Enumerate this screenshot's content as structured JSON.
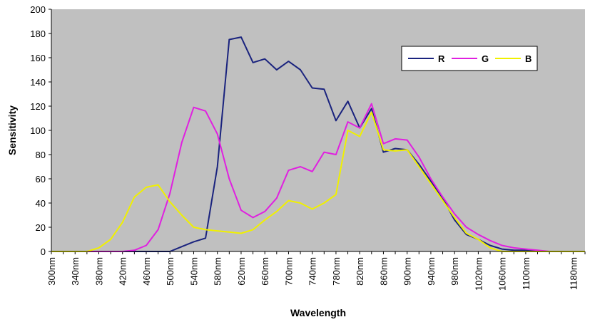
{
  "chart_data": {
    "type": "line",
    "title": "",
    "xlabel": "Wavelength",
    "ylabel": "Sensitivity",
    "ylim": [
      0,
      200
    ],
    "yticks": [
      0,
      20,
      40,
      60,
      80,
      100,
      120,
      140,
      160,
      180,
      200
    ],
    "xtick_labels": [
      "300nm",
      "340nm",
      "380nm",
      "420nm",
      "460nm",
      "500nm",
      "540nm",
      "580nm",
      "620nm",
      "660nm",
      "700nm",
      "740nm",
      "780nm",
      "820nm",
      "860nm",
      "900nm",
      "940nm",
      "980nm",
      "1020nm",
      "1060nm",
      "1100nm",
      "1180nm"
    ],
    "xtick_positions": [
      300,
      340,
      380,
      420,
      460,
      500,
      540,
      580,
      620,
      660,
      700,
      740,
      780,
      820,
      860,
      900,
      940,
      980,
      1020,
      1060,
      1100,
      1180
    ],
    "x": [
      300,
      320,
      340,
      360,
      380,
      400,
      420,
      440,
      460,
      480,
      500,
      520,
      540,
      560,
      580,
      600,
      620,
      640,
      660,
      680,
      700,
      720,
      740,
      760,
      780,
      800,
      820,
      840,
      860,
      880,
      900,
      920,
      940,
      960,
      980,
      1000,
      1020,
      1040,
      1060,
      1080,
      1100,
      1120,
      1140,
      1160,
      1180,
      1200
    ],
    "series": [
      {
        "name": "R",
        "color": "#1a237e",
        "values": [
          0,
          0,
          0,
          0,
          0,
          0,
          0,
          0,
          0,
          0,
          0,
          4,
          8,
          11,
          70,
          175,
          177,
          156,
          159,
          150,
          157,
          150,
          135,
          134,
          108,
          124,
          102,
          118,
          82,
          85,
          84,
          72,
          58,
          44,
          26,
          14,
          10,
          5,
          2,
          1,
          1,
          0,
          0,
          0,
          0,
          0
        ]
      },
      {
        "name": "G",
        "color": "#e020e0",
        "values": [
          0,
          0,
          0,
          0,
          0,
          0,
          0,
          1,
          5,
          18,
          48,
          90,
          119,
          116,
          97,
          60,
          34,
          28,
          33,
          44,
          67,
          70,
          66,
          82,
          80,
          107,
          102,
          122,
          89,
          93,
          92,
          78,
          60,
          45,
          31,
          20,
          14,
          9,
          5,
          3,
          2,
          1,
          0,
          0,
          0,
          0
        ]
      },
      {
        "name": "B",
        "color": "#f0f000",
        "values": [
          0,
          0,
          0,
          0,
          3,
          10,
          24,
          45,
          53,
          55,
          41,
          30,
          20,
          18,
          17,
          16,
          15,
          18,
          26,
          33,
          42,
          40,
          35,
          40,
          47,
          100,
          95,
          115,
          84,
          83,
          84,
          70,
          56,
          42,
          28,
          15,
          10,
          3,
          0,
          0,
          0,
          0,
          0,
          0,
          0,
          0
        ]
      }
    ],
    "legend_placement": "top-right",
    "plot_background": "#c0c0c0",
    "grid": false
  }
}
